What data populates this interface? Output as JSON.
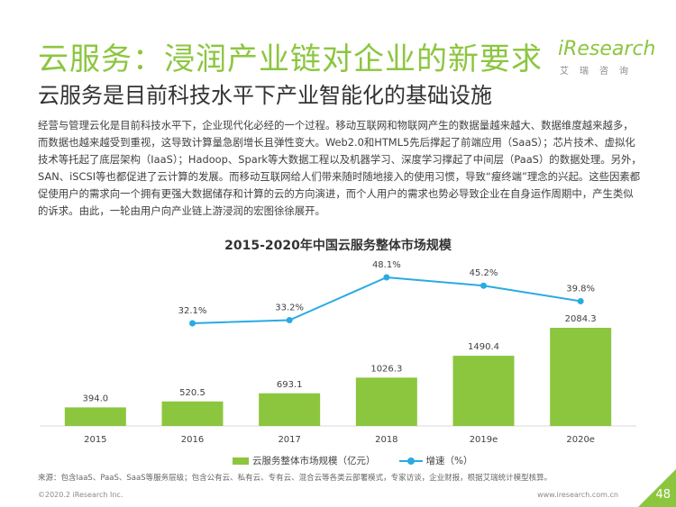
{
  "header": {
    "title": "云服务：浸润产业链对企业的新要求",
    "subtitle": "云服务是目前科技水平下产业智能化的基础设施",
    "logo_word": "iResearch",
    "logo_sub": "艾瑞咨询"
  },
  "body_text": "经营与管理云化是目前科技水平下，企业现代化必经的一个过程。移动互联网和物联网产生的数据量越来越大、数据维度越来越多，而数据也越来越受到重视，这导致计算量急剧增长且弹性变大。Web2.0和HTML5先后撑起了前端应用（SaaS）；芯片技术、虚拟化技术等托起了底层架构（IaaS）；Hadoop、Spark等大数据工程以及机器学习、深度学习撑起了中间层（PaaS）的数据处理。另外，SAN、iSCSI等也都促进了云计算的发展。而移动互联网给人们带来随时随地接入的使用习惯，导致“瘦终端”理念的兴起。这些因素都促使用户的需求向一个拥有更强大数据储存和计算的云的方向演进，而个人用户的需求也势必导致企业在自身运作周期中，产生类似的诉求。由此，一轮由用户向产业链上游浸润的宏图徐徐展开。",
  "colors": {
    "bar": "#8cc63f",
    "line": "#29abe2",
    "title": "#8cc63f"
  },
  "chart_data": {
    "type": "bar",
    "title": "2015-2020年中国云服务整体市场规模",
    "categories": [
      "2015",
      "2016",
      "2017",
      "2018",
      "2019e",
      "2020e"
    ],
    "series": [
      {
        "name": "云服务整体市场规模（亿元）",
        "type": "bar",
        "values": [
          394.0,
          520.5,
          693.1,
          1026.3,
          1490.4,
          2084.3
        ],
        "labels": [
          "394.0",
          "520.5",
          "693.1",
          "1026.3",
          "1490.4",
          "2084.3"
        ]
      },
      {
        "name": "增速（%）",
        "type": "line",
        "values": [
          null,
          32.1,
          33.2,
          48.1,
          45.2,
          39.8
        ],
        "labels": [
          "",
          "32.1%",
          "33.2%",
          "48.1%",
          "45.2%",
          "39.8%"
        ]
      }
    ]
  },
  "legend": {
    "bar_label": "云服务整体市场规模（亿元）",
    "line_label": "增速（%）"
  },
  "footer": {
    "source": "来源：包含IaaS、PaaS、SaaS等服务层级；包含公有云、私有云、专有云、混合云等各类云部署模式，专家访谈，企业财报，根据艾瑞统计模型核算。",
    "copyright": "©2020.2 iResearch Inc.",
    "site": "www.iresearch.com.cn",
    "page": "48"
  }
}
